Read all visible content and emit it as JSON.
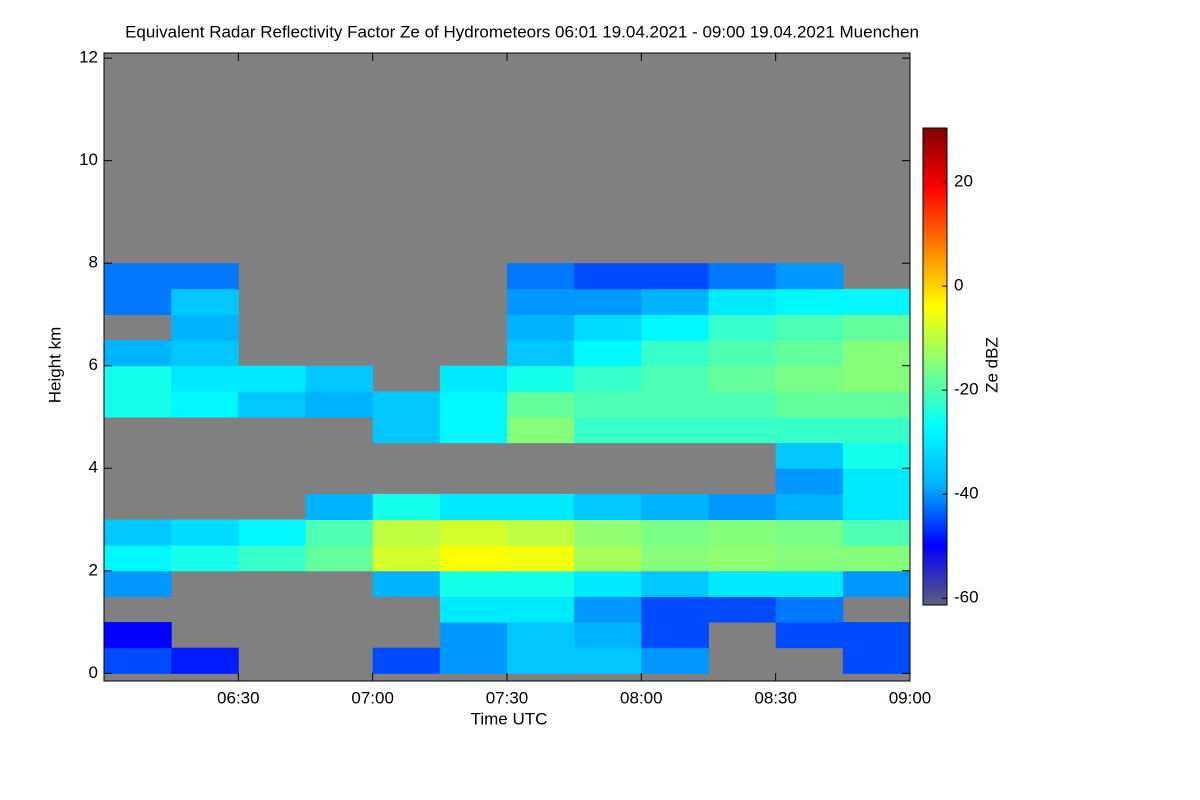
{
  "chart_data": {
    "type": "heatmap",
    "title": "Equivalent Radar Reflectivity Factor Ze of Hydrometeors   06:01 19.04.2021 - 09:00 19.04.2021 Muenchen",
    "x_label": "Time UTC",
    "y_label": "Height km",
    "colorbar_label": "Ze dBZ",
    "background_color": "#808080",
    "colormap": [
      "#5f5f7a",
      "#0000ff",
      "#00b0ff",
      "#00ffff",
      "#80ff80",
      "#ffff00",
      "#ff8000",
      "#ff0000",
      "#800000"
    ],
    "xlim": [
      6.0,
      9.0
    ],
    "xticks": [
      {
        "value": 6.5,
        "label": "06:30"
      },
      {
        "value": 7.0,
        "label": "07:00"
      },
      {
        "value": 7.5,
        "label": "07:30"
      },
      {
        "value": 8.0,
        "label": "08:00"
      },
      {
        "value": 8.5,
        "label": "08:30"
      },
      {
        "value": 9.0,
        "label": "09:00"
      }
    ],
    "ylim": [
      -0.15,
      12.1
    ],
    "yticks": [
      0,
      2,
      4,
      6,
      8,
      10,
      12
    ],
    "zlim": [
      -61.3,
      30.4
    ],
    "zticks": [
      -60,
      -40,
      -20,
      0,
      20
    ],
    "x_bins": [
      6.0,
      6.25,
      6.5,
      6.75,
      7.0,
      7.25,
      7.5,
      7.75,
      8.0,
      8.25,
      8.5,
      8.75,
      9.0
    ],
    "y_bins": [
      0,
      0.5,
      1,
      1.5,
      2,
      2.5,
      3,
      3.5,
      4,
      4.5,
      5,
      5.5,
      6,
      6.5,
      7,
      7.5,
      8
    ],
    "values": [
      [
        -45,
        -48,
        null,
        null,
        -45,
        -40,
        -35,
        -35,
        -40,
        null,
        null,
        -45
      ],
      [
        -50,
        null,
        null,
        null,
        null,
        -40,
        -35,
        -38,
        -45,
        null,
        -45,
        -45
      ],
      [
        null,
        null,
        null,
        null,
        null,
        -30,
        -30,
        -40,
        -45,
        -45,
        -42,
        null
      ],
      [
        -40,
        null,
        null,
        null,
        -38,
        -25,
        -25,
        -30,
        -35,
        -30,
        -30,
        -40
      ],
      [
        -28,
        -25,
        -22,
        -18,
        -8,
        -4,
        -5,
        -12,
        -15,
        -14,
        -15,
        -15
      ],
      [
        -35,
        -32,
        -28,
        -20,
        -10,
        -8,
        -10,
        -14,
        -16,
        -15,
        -16,
        -20
      ],
      [
        null,
        null,
        null,
        -38,
        -25,
        -30,
        -30,
        -35,
        -38,
        -40,
        -38,
        -30
      ],
      [
        null,
        null,
        null,
        null,
        null,
        null,
        null,
        null,
        null,
        null,
        -40,
        -30
      ],
      [
        null,
        null,
        null,
        null,
        null,
        null,
        null,
        null,
        null,
        null,
        -35,
        -25
      ],
      [
        null,
        null,
        null,
        null,
        -35,
        -28,
        -15,
        -22,
        -22,
        -22,
        -22,
        -22
      ],
      [
        -25,
        -28,
        -35,
        -38,
        -35,
        -28,
        -18,
        -20,
        -20,
        -20,
        -18,
        -18
      ],
      [
        -25,
        -30,
        -30,
        -35,
        null,
        -30,
        -25,
        -22,
        -20,
        -18,
        -16,
        -15
      ],
      [
        -38,
        -35,
        null,
        null,
        null,
        null,
        -35,
        -28,
        -22,
        -20,
        -18,
        -15
      ],
      [
        null,
        -38,
        null,
        null,
        null,
        null,
        -38,
        -32,
        -28,
        -22,
        -20,
        -18
      ],
      [
        -42,
        -35,
        null,
        null,
        null,
        null,
        -40,
        -40,
        -38,
        -30,
        -28,
        -28
      ],
      [
        -42,
        -42,
        null,
        null,
        null,
        null,
        -42,
        -45,
        -45,
        -42,
        -40,
        null
      ]
    ]
  }
}
